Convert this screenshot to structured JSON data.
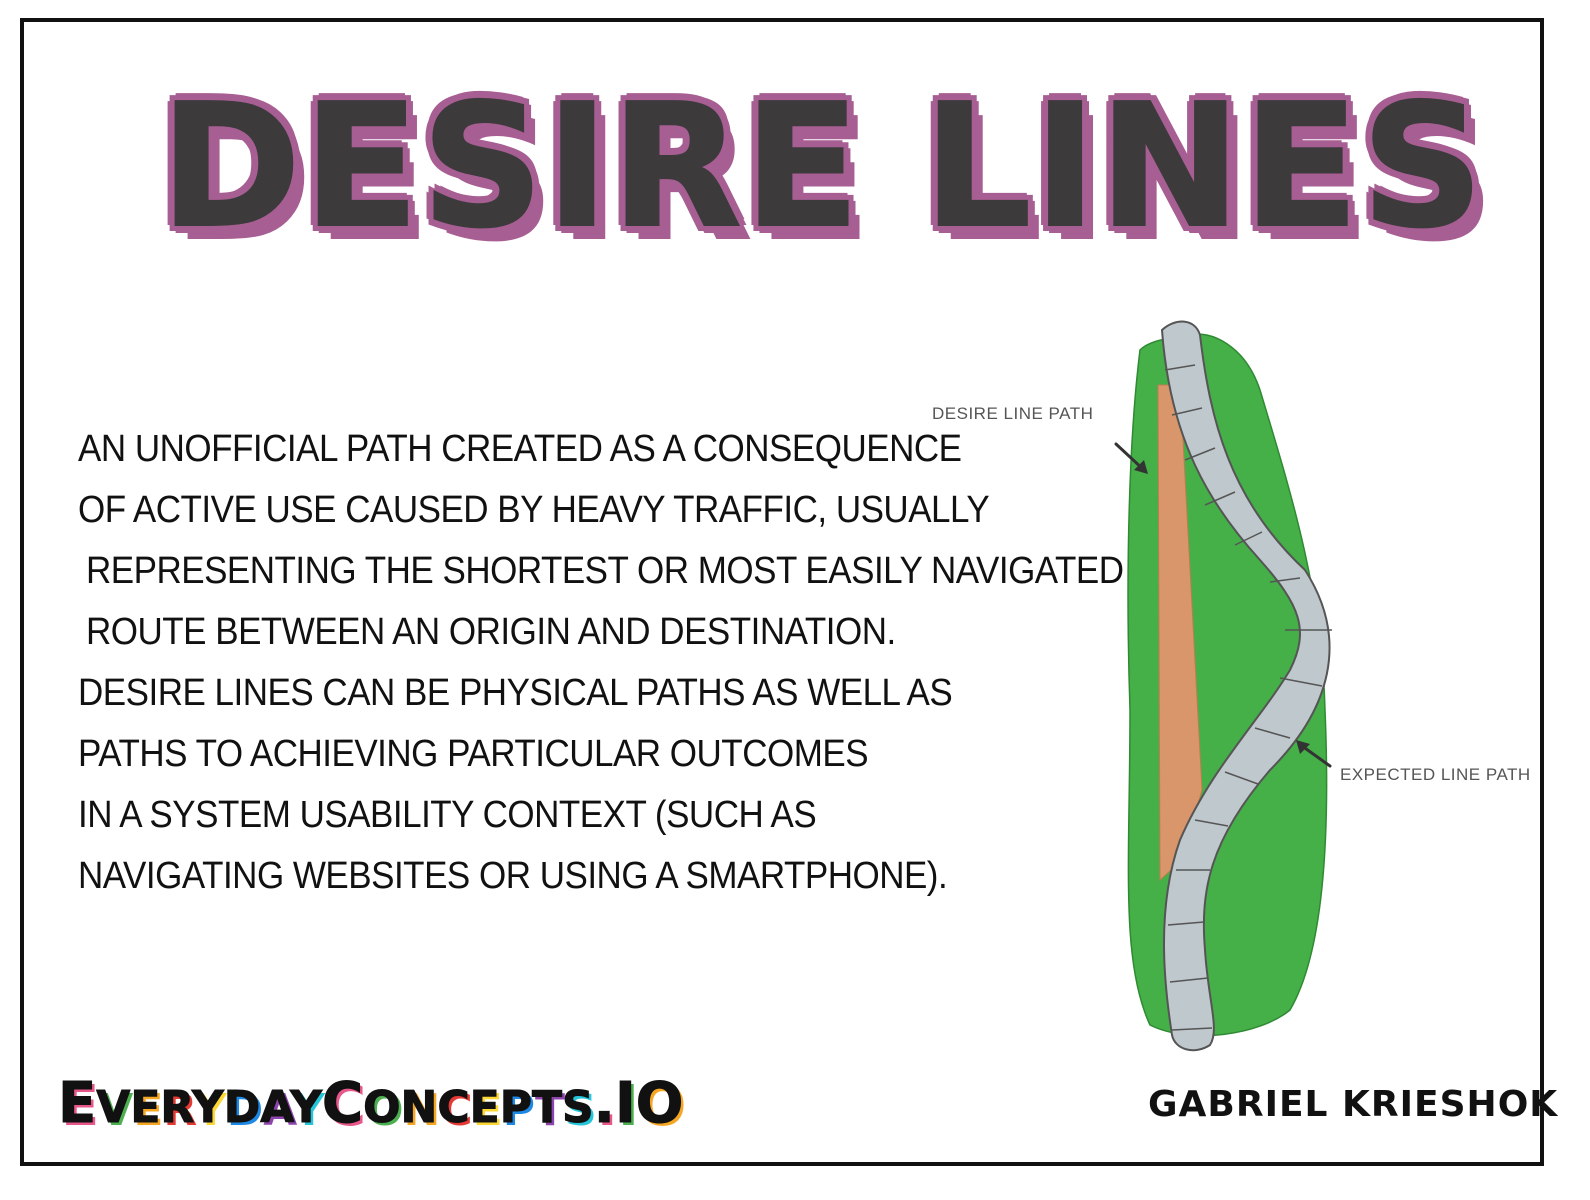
{
  "title": "DESIRE LINES",
  "body_lines": [
    "AN UNOFFICIAL PATH CREATED AS A CONSEQUENCE",
    "OF ACTIVE USE CAUSED BY HEAVY TRAFFIC, USUALLY",
    "REPRESENTING THE SHORTEST OR MOST EASILY NAVIGATED",
    "ROUTE BETWEEN AN ORIGIN AND DESTINATION.",
    "DESIRE LINES CAN BE PHYSICAL PATHS AS WELL AS",
    "PATHS TO ACHIEVING PARTICULAR OUTCOMES",
    "IN A SYSTEM USABILITY CONTEXT (SUCH AS",
    "NAVIGATING WEBSITES OR USING A SMARTPHONE)."
  ],
  "illustration": {
    "desire_label": "DESIRE LINE PATH",
    "expected_label": "EXPECTED LINE PATH",
    "colors": {
      "grass": "#45b048",
      "desire_path": "#d9966a",
      "expected_path": "#bfc8cd",
      "outline": "#555555"
    }
  },
  "footer": {
    "brand": "EVERYDAYCONCEPTS.IO",
    "brand_letter_colors": [
      "#e8578a",
      "#4caf50",
      "#f5a623",
      "#e53935",
      "#fdd835",
      "#1e88e5",
      "#8e44ad",
      "#26c6da",
      "#e8578a",
      "#4caf50",
      "#f5a623",
      "#e53935",
      "#fdd835",
      "#1e88e5",
      "#8e44ad",
      "#26c6da",
      "#e8578a",
      "#4caf50",
      "#f5a623"
    ],
    "author": "GABRIEL KRIESHOK"
  },
  "colors": {
    "title_fill": "#3d3a3c",
    "title_shadow": "#a75e92",
    "frame": "#111111"
  }
}
